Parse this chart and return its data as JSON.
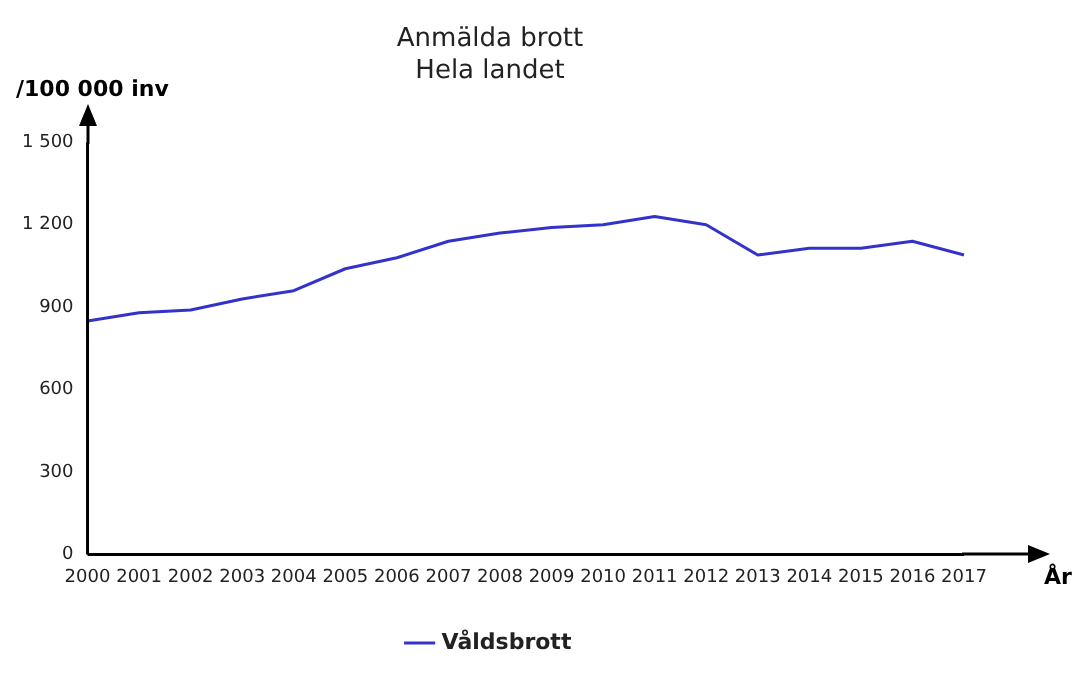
{
  "chart_data": {
    "type": "line",
    "title": "Anmälda brott",
    "subtitle": "Hela landet",
    "xlabel": "År",
    "ylabel": "/100 000 inv",
    "categories": [
      "2000",
      "2001",
      "2002",
      "2003",
      "2004",
      "2005",
      "2006",
      "2007",
      "2008",
      "2009",
      "2010",
      "2011",
      "2012",
      "2013",
      "2014",
      "2015",
      "2016",
      "2017"
    ],
    "series": [
      {
        "name": "Våldsbrott",
        "color": "#3333cc",
        "values": [
          850,
          880,
          890,
          930,
          960,
          1040,
          1080,
          1140,
          1170,
          1190,
          1200,
          1230,
          1200,
          1090,
          1115,
          1115,
          1140,
          1090
        ]
      }
    ],
    "ylim": [
      0,
      1500
    ],
    "yticks": [
      0,
      300,
      600,
      900,
      {
        "value": 1200,
        "label": "1 200"
      },
      {
        "value": 1500,
        "label": "1 500"
      }
    ],
    "grid": false,
    "legend": "bottom",
    "marker": "none",
    "line_style": "solid"
  }
}
